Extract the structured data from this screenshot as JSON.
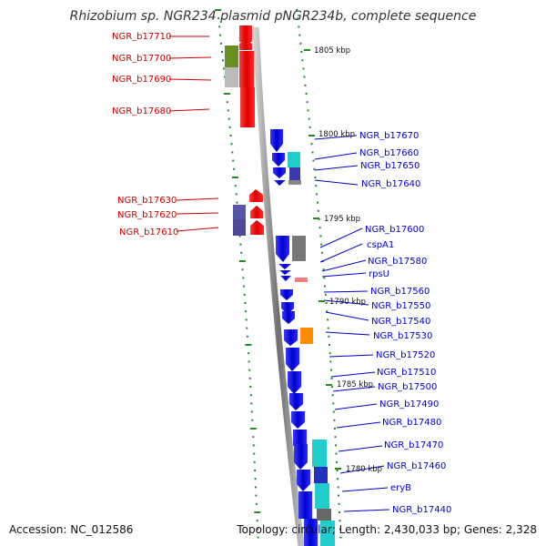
{
  "title": "Rhizobium sp. NGR234 plasmid pNGR234b, complete sequence",
  "footer": {
    "accession": "Accession: NC_012586",
    "summary": "Topology: circular; Length: 2,430,033 bp; Genes: 2,328"
  },
  "colors": {
    "forward_strand": "#ff0000",
    "reverse_strand": "#0000ee",
    "forward_label": "#cc0000",
    "reverse_label": "#0000cc",
    "tick": "#228b22",
    "backbone": "#888888"
  },
  "kbp_labels": [
    "1805 kbp",
    "1800 kbp",
    "1795 kbp",
    "1790 kbp",
    "1785 kbp",
    "1780 kbp"
  ],
  "forward_labels": [
    "NGR_b17710",
    "NGR_b17700",
    "NGR_b17690",
    "NGR_b17680",
    "NGR_b17630",
    "NGR_b17620",
    "NGR_b17610"
  ],
  "reverse_labels": [
    "NGR_b17670",
    "NGR_b17660",
    "NGR_b17650",
    "NGR_b17640",
    "NGR_b17600",
    "cspA1",
    "NGR_b17580",
    "rpsU",
    "NGR_b17560",
    "NGR_b17550",
    "NGR_b17540",
    "NGR_b17530",
    "NGR_b17520",
    "NGR_b17510",
    "NGR_b17500",
    "NGR_b17490",
    "NGR_b17480",
    "NGR_b17470",
    "NGR_b17460",
    "eryB",
    "NGR_b17440"
  ]
}
